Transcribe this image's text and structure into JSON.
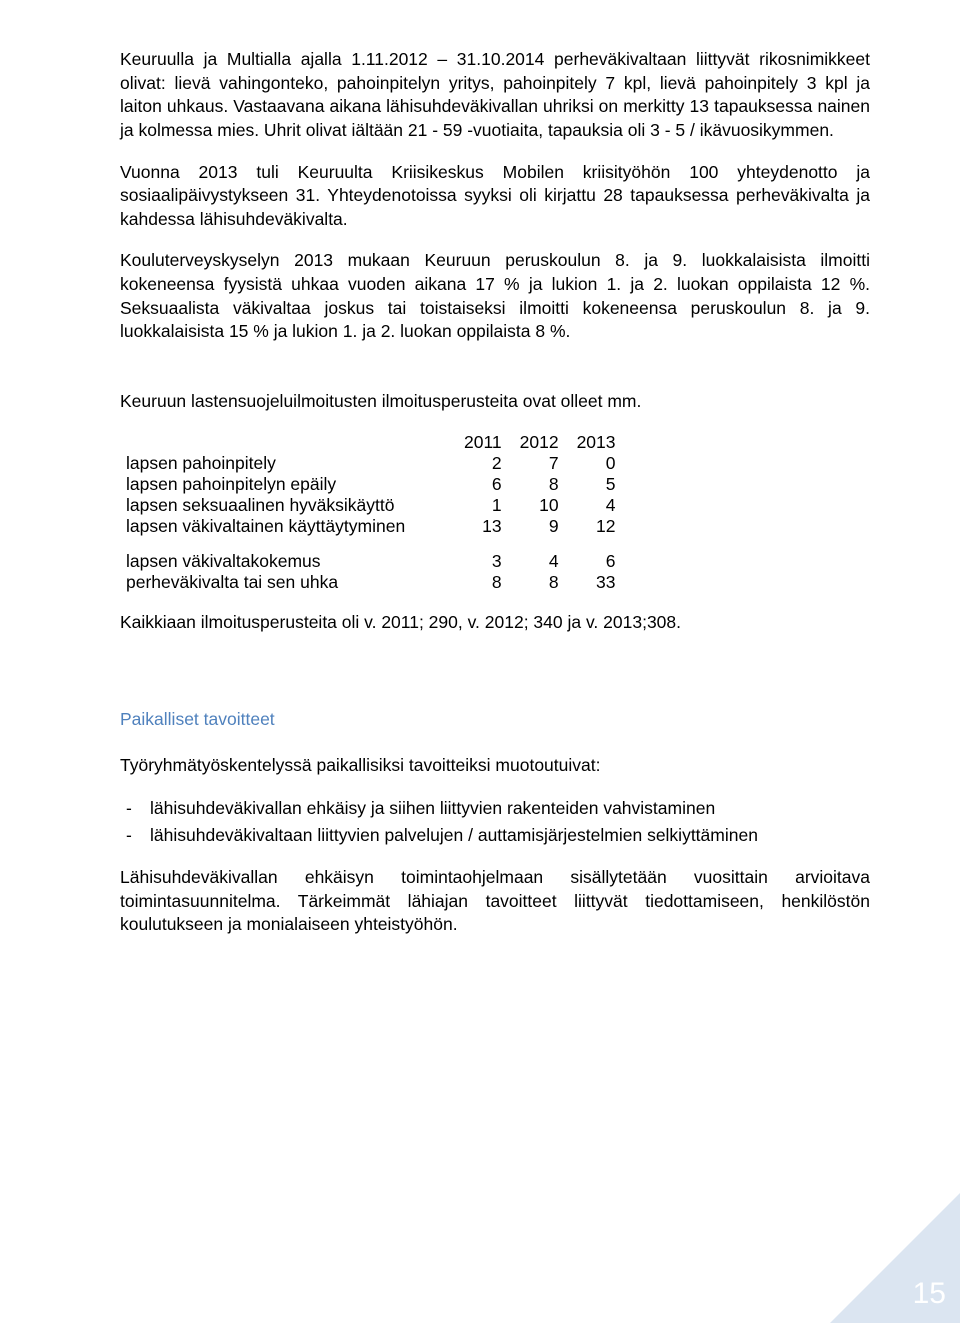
{
  "para1": "Keuruulla ja  Multialla ajalla 1.11.2012 – 31.10.2014 perheväkivaltaan liittyvät rikosnimikkeet olivat: lievä vahingonteko, pahoinpitelyn yritys, pahoinpitely 7 kpl, lievä pahoinpitely 3 kpl ja laiton uhkaus. Vastaavana aikana lähisuhdeväkivallan uhriksi on merkitty 13 tapauksessa nainen ja kolmessa mies. Uhrit olivat iältään 21 - 59 -vuotiaita, tapauksia oli 3 - 5 / ikävuosikymmen.",
  "para2": "Vuonna 2013 tuli Keuruulta Kriisikeskus Mobilen kriisityöhön 100 yhteydenotto ja sosiaalipäivystykseen 31. Yhteydenotoissa syyksi oli kirjattu 28 tapauksessa perheväkivalta ja kahdessa lähisuhdeväkivalta.",
  "para3": "Kouluterveyskyselyn 2013 mukaan Keuruun peruskoulun 8. ja 9. luokkalaisista ilmoitti kokeneensa fyysistä uhkaa vuoden aikana 17 % ja lukion 1. ja 2. luokan oppilaista 12 %. Seksuaalista väkivaltaa joskus tai toistaiseksi ilmoitti kokeneensa peruskoulun 8. ja 9. luokkalaisista 15 % ja lukion 1. ja 2. luokan oppilaista 8 %.",
  "para4": "Keuruun lastensuojeluilmoitusten ilmoitusperusteita ovat olleet mm.",
  "table": {
    "years": [
      "2011",
      "2012",
      "2013"
    ],
    "rows": [
      {
        "label": "lapsen pahoinpitely",
        "v": [
          "2",
          "7",
          "0"
        ]
      },
      {
        "label": "lapsen pahoinpitelyn epäily",
        "v": [
          "6",
          "8",
          "5"
        ]
      },
      {
        "label": "lapsen seksuaalinen hyväksikäyttö",
        "v": [
          "1",
          "10",
          "4"
        ]
      },
      {
        "label": "lapsen väkivaltainen käyttäytyminen",
        "v": [
          "13",
          "9",
          "12"
        ]
      }
    ],
    "rows2": [
      {
        "label": "lapsen väkivaltakokemus",
        "v": [
          "3",
          "4",
          "6"
        ]
      },
      {
        "label": "perheväkivalta tai sen uhka",
        "v": [
          "8",
          "8",
          "33"
        ]
      }
    ]
  },
  "para5": "Kaikkiaan ilmoitusperusteita oli v. 2011; 290, v. 2012; 340 ja v. 2013;308.",
  "subhead": "Paikalliset tavoitteet",
  "para6": "Työryhmätyöskentelyssä paikallisiksi tavoitteiksi muotoutuivat:",
  "bullets": [
    "lähisuhdeväkivallan ehkäisy ja siihen liittyvien rakenteiden vahvistaminen",
    "lähisuhdeväkivaltaan liittyvien palvelujen / auttamisjärjestelmien selkiyttäminen"
  ],
  "para7": "Lähisuhdeväkivallan ehkäisyn toimintaohjelmaan sisällytetään vuosittain arvioitava toimintasuunnitelma. Tärkeimmät lähiajan tavoitteet liittyvät tiedottamiseen, henkilöstön koulutukseen ja monialaiseen yhteistyöhön.",
  "pageNumber": "15",
  "colors": {
    "subhead": "#4f81bd",
    "triangle": "#dbe5f1",
    "pageNum": "#ffffff",
    "text": "#000000",
    "background": "#ffffff"
  }
}
